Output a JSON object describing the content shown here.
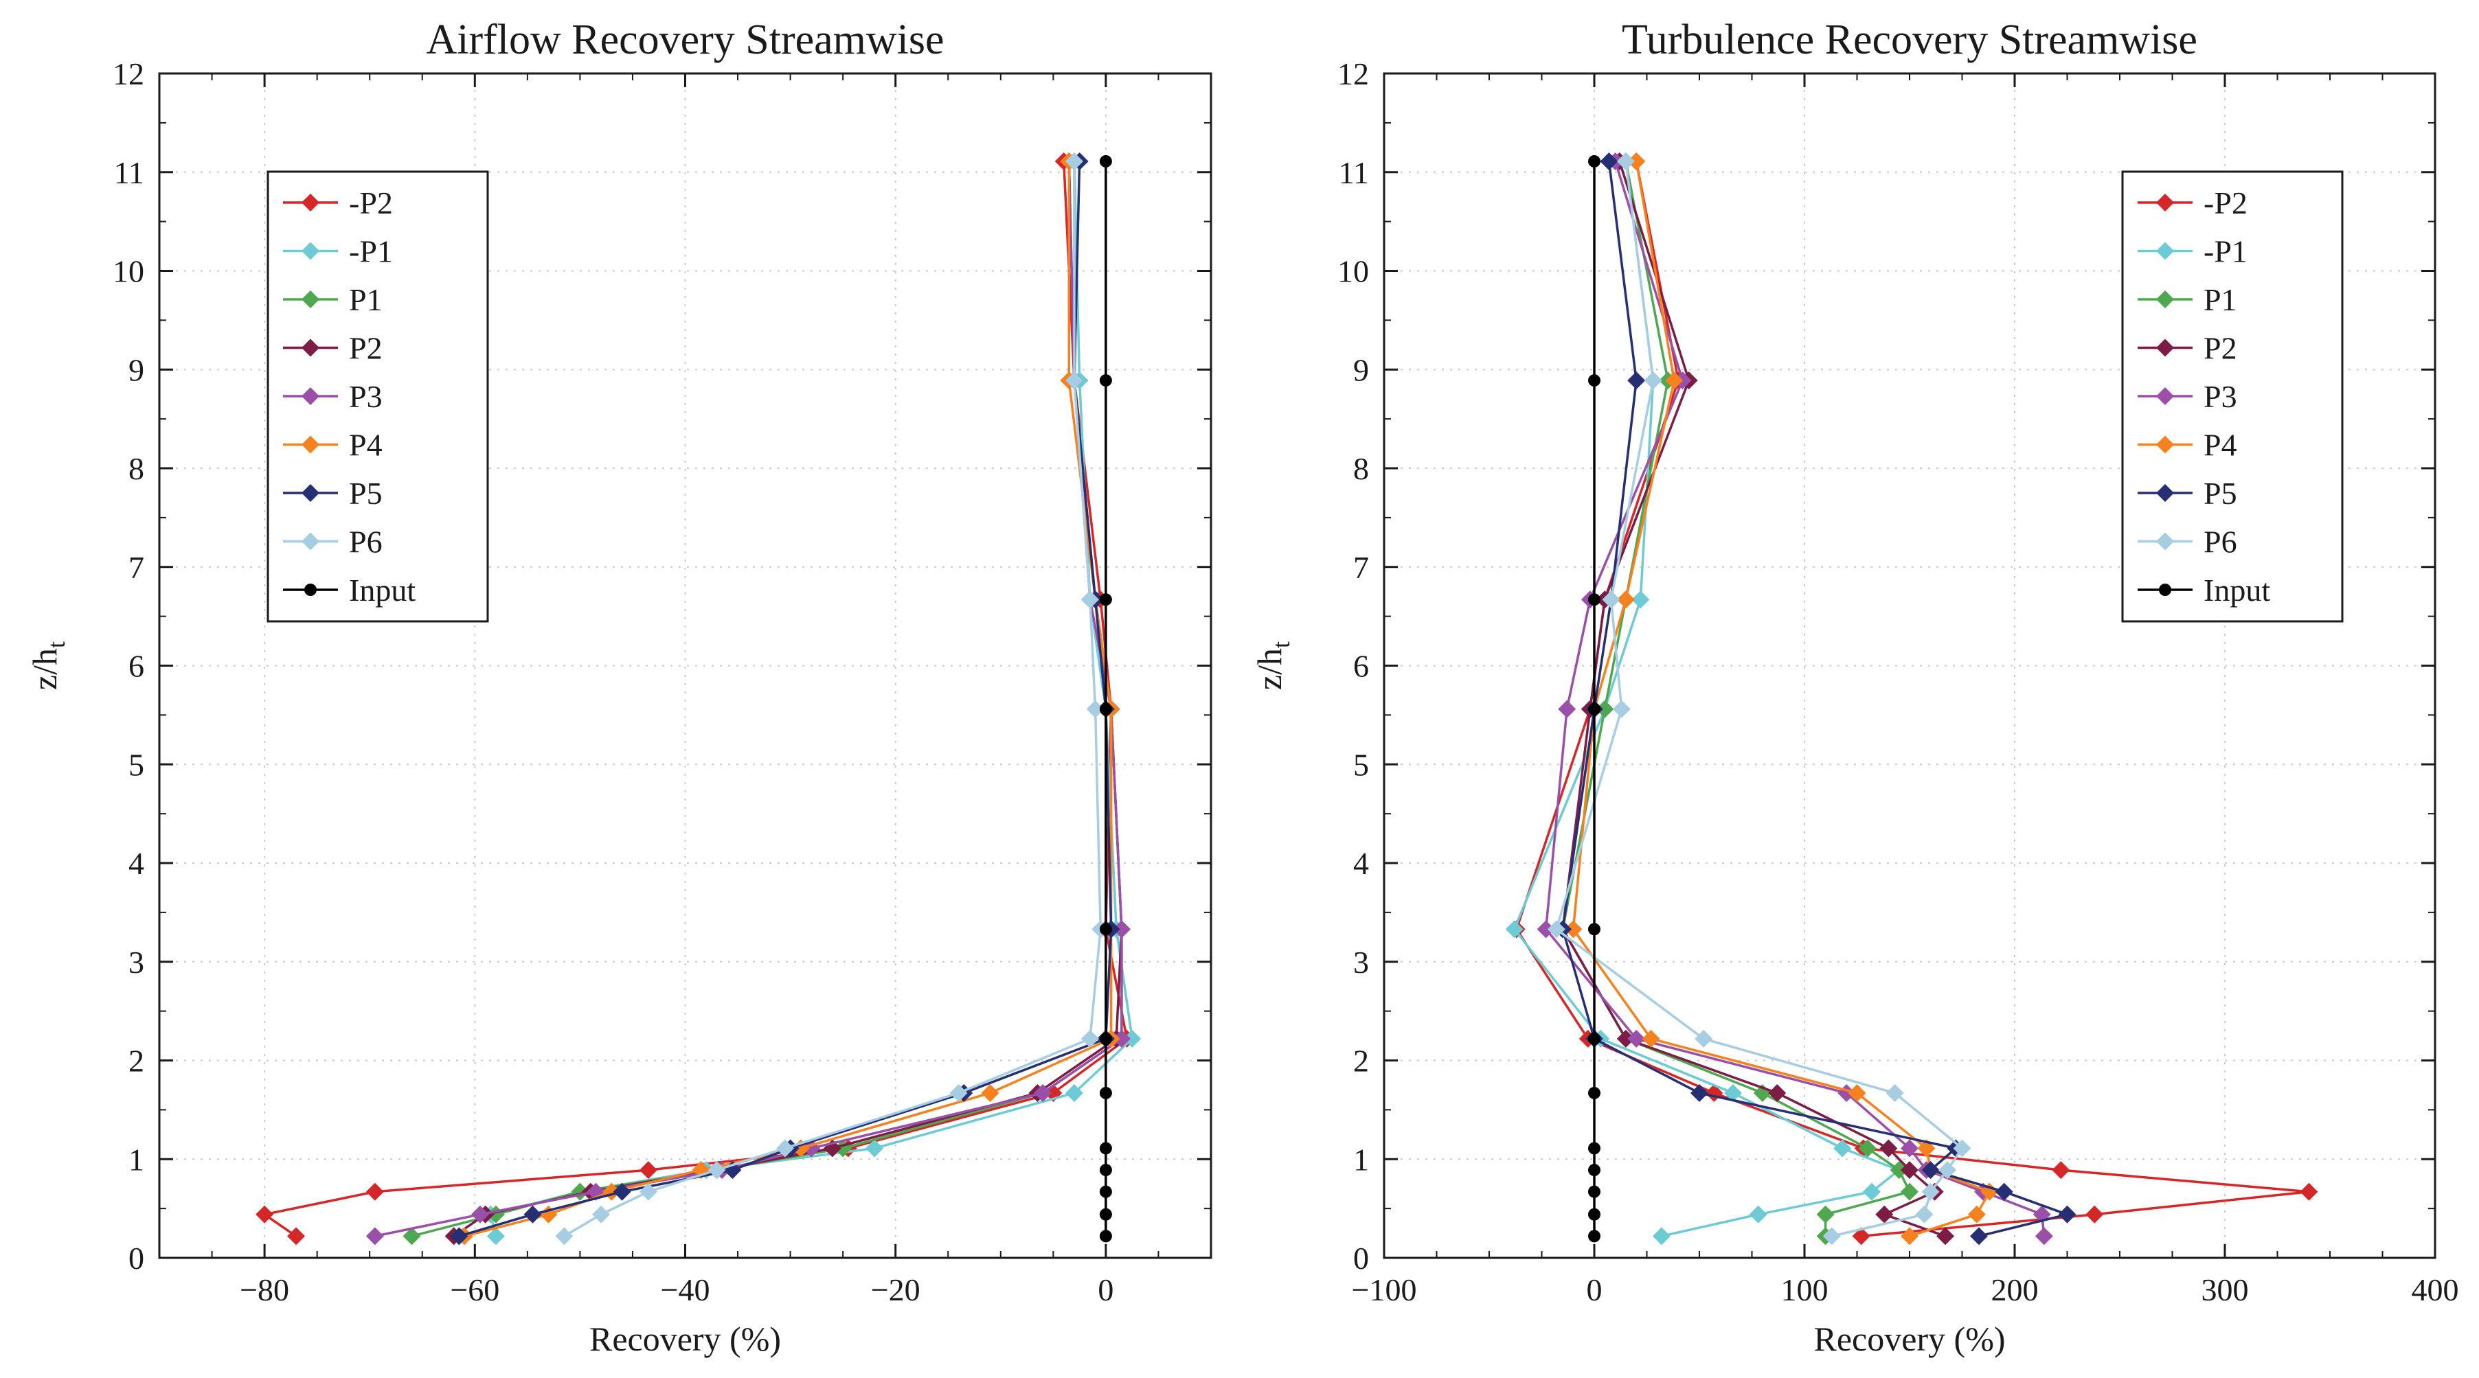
{
  "chart_data": [
    {
      "type": "line",
      "title": "Airflow Recovery Streamwise",
      "xlabel": "Recovery (%)",
      "ylabel": "z/h",
      "ylabel_sub": "t",
      "xlim": [
        -90,
        10
      ],
      "ylim": [
        0,
        12
      ],
      "xticks": [
        -80,
        -60,
        -40,
        -20,
        0
      ],
      "xtick_labels": [
        "−80",
        "−60",
        "−40",
        "−20",
        "0"
      ],
      "yticks": [
        0,
        1,
        2,
        3,
        4,
        5,
        6,
        7,
        8,
        9,
        10,
        11,
        12
      ],
      "ytick_labels": [
        "0",
        "1",
        "2",
        "3",
        "4",
        "5",
        "6",
        "7",
        "8",
        "9",
        "10",
        "11",
        "12"
      ],
      "grid": true,
      "legend_position": "upper-left",
      "series": [
        {
          "name": "-P2",
          "color": "#d62728",
          "marker": "diamond",
          "x": [
            -77,
            -80,
            -69.5,
            -43.5,
            -24.5,
            -5,
            2,
            0,
            0.5,
            -0.5,
            -3,
            -4
          ],
          "y": [
            0.22,
            0.44,
            0.67,
            0.89,
            1.11,
            1.67,
            2.22,
            3.33,
            5.56,
            6.67,
            8.89,
            11.11
          ]
        },
        {
          "name": "-P1",
          "color": "#6ccbd4",
          "marker": "diamond",
          "x": [
            -58,
            -58.5,
            -50,
            -38,
            -22,
            -3,
            2.5,
            1,
            0,
            -1.5,
            -2.5,
            -3
          ]
        },
        {
          "name": "P1",
          "color": "#4fa84f",
          "marker": "diamond",
          "x": [
            -66,
            -58,
            -50,
            -37,
            -25,
            -6,
            1.5,
            1.5,
            0.5,
            -1,
            -3,
            -3
          ]
        },
        {
          "name": "P2",
          "color": "#7b1d45",
          "marker": "diamond",
          "x": [
            -62,
            -59,
            -49,
            -37,
            -26,
            -6.5,
            1,
            1.5,
            0.5,
            -1,
            -3,
            -3.5
          ]
        },
        {
          "name": "P3",
          "color": "#9a4fa8",
          "marker": "diamond",
          "x": [
            -69.5,
            -59.5,
            -48.5,
            -36.5,
            -28,
            -6,
            1.5,
            1.5,
            0.5,
            -1.5,
            -3,
            -3.5
          ]
        },
        {
          "name": "P4",
          "color": "#f5821f",
          "marker": "diamond",
          "x": [
            -61,
            -53,
            -47,
            -38.5,
            -29,
            -11,
            0.5,
            0.5,
            0.5,
            -1,
            -3.5,
            -3.5
          ]
        },
        {
          "name": "P5",
          "color": "#262f73",
          "marker": "diamond",
          "x": [
            -61.5,
            -54.5,
            -46,
            -35.5,
            -30,
            -13.5,
            0,
            0.5,
            0,
            -1,
            -3,
            -2.5
          ]
        },
        {
          "name": "P6",
          "color": "#a7cde3",
          "marker": "diamond",
          "x": [
            -51.5,
            -48,
            -43.5,
            -37,
            -30.5,
            -14,
            -1.5,
            -0.5,
            -1,
            -1.5,
            -3,
            -3
          ]
        },
        {
          "name": "Input",
          "color": "#000000",
          "marker": "circle",
          "x": [
            0,
            0,
            0,
            0,
            0,
            0,
            0,
            0,
            0,
            0,
            0,
            0
          ]
        }
      ]
    },
    {
      "type": "line",
      "title": "Turbulence Recovery Streamwise",
      "xlabel": "Recovery (%)",
      "ylabel": "z/h",
      "ylabel_sub": "t",
      "xlim": [
        -100,
        400
      ],
      "ylim": [
        0,
        12
      ],
      "xticks": [
        -100,
        0,
        100,
        200,
        300,
        400
      ],
      "xtick_labels": [
        "−100",
        "0",
        "100",
        "200",
        "300",
        "400"
      ],
      "yticks": [
        0,
        1,
        2,
        3,
        4,
        5,
        6,
        7,
        8,
        9,
        10,
        11,
        12
      ],
      "ytick_labels": [
        "0",
        "1",
        "2",
        "3",
        "4",
        "5",
        "6",
        "7",
        "8",
        "9",
        "10",
        "11",
        "12"
      ],
      "grid": true,
      "legend_position": "upper-right",
      "series": [
        {
          "name": "-P2",
          "color": "#d62728",
          "marker": "diamond",
          "x": [
            127,
            238,
            340,
            222,
            128,
            57,
            -3,
            -37,
            -2,
            5,
            40,
            20
          ]
        },
        {
          "name": "-P1",
          "color": "#6ccbd4",
          "marker": "diamond",
          "x": [
            32,
            78,
            132,
            145,
            118,
            66,
            3,
            -38,
            5,
            22,
            28,
            15
          ]
        },
        {
          "name": "P1",
          "color": "#4fa84f",
          "marker": "diamond",
          "x": [
            110,
            110,
            150,
            145,
            130,
            80,
            15,
            -15,
            5,
            15,
            35,
            15
          ]
        },
        {
          "name": "P2",
          "color": "#7b1d45",
          "marker": "diamond",
          "x": [
            167,
            138,
            162,
            150,
            140,
            87,
            15,
            -15,
            -2,
            5,
            45,
            12
          ]
        },
        {
          "name": "P3",
          "color": "#9a4fa8",
          "marker": "diamond",
          "x": [
            214,
            213,
            185,
            158,
            150,
            120,
            20,
            -23,
            -13,
            -2,
            42,
            10
          ]
        },
        {
          "name": "P4",
          "color": "#f5821f",
          "marker": "diamond",
          "x": [
            150,
            182,
            188,
            160,
            158,
            125,
            27,
            -10,
            0,
            15,
            38,
            20
          ]
        },
        {
          "name": "P5",
          "color": "#262f73",
          "marker": "diamond",
          "x": [
            183,
            225,
            195,
            160,
            172,
            50,
            0,
            -15,
            0,
            8,
            20,
            7
          ]
        },
        {
          "name": "P6",
          "color": "#a7cde3",
          "marker": "diamond",
          "x": [
            113,
            157,
            160,
            168,
            175,
            143,
            52,
            -18,
            13,
            8,
            28,
            15
          ]
        },
        {
          "name": "Input",
          "color": "#000000",
          "marker": "circle",
          "x": [
            0,
            0,
            0,
            0,
            0,
            0,
            0,
            0,
            0,
            0,
            0,
            0
          ]
        }
      ]
    }
  ],
  "shared_y": [
    0.22,
    0.44,
    0.67,
    0.89,
    1.11,
    1.67,
    2.22,
    3.33,
    5.56,
    6.67,
    8.89,
    11.11
  ]
}
